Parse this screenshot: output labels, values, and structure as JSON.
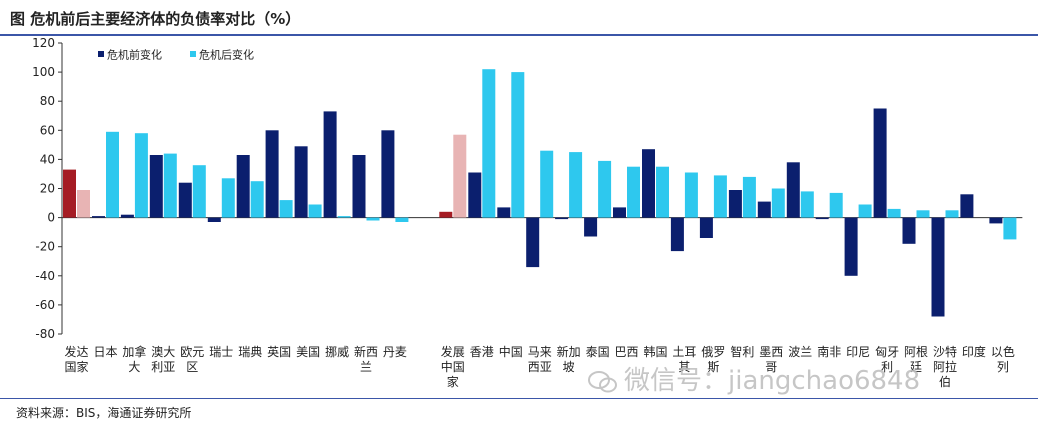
{
  "title": "图 危机前后主要经济体的负债率对比（%）",
  "source": "资料来源：BIS，海通证券研究所",
  "watermark": "微信号：jiangchao6848",
  "colors": {
    "pre": "#0b1f6e",
    "post": "#2ec8ee",
    "pre_aggregate": "#a51c24",
    "post_aggregate": "#e8b4b4",
    "rule": "#3b56a8"
  },
  "chart_data": {
    "type": "bar",
    "title": "危机前后主要经济体的负债率对比（%）",
    "ylabel": "%",
    "ylim": [
      -80,
      120
    ],
    "yticks": [
      -80,
      -60,
      -40,
      -20,
      0,
      20,
      40,
      60,
      80,
      100,
      120
    ],
    "grid": false,
    "legend_position": "top-left",
    "categories": [
      [
        "发达",
        "国家"
      ],
      [
        "日本"
      ],
      [
        "加拿",
        "大"
      ],
      [
        "澳大",
        "利亚"
      ],
      [
        "欧元",
        "区"
      ],
      [
        "瑞士"
      ],
      [
        "瑞典"
      ],
      [
        "英国"
      ],
      [
        "美国"
      ],
      [
        "挪威"
      ],
      [
        "新西",
        "兰"
      ],
      [
        "丹麦"
      ],
      [
        ""
      ],
      [
        "发展",
        "中国",
        "家"
      ],
      [
        "香港"
      ],
      [
        "中国"
      ],
      [
        "马来",
        "西亚"
      ],
      [
        "新加",
        "坡"
      ],
      [
        "泰国"
      ],
      [
        "巴西"
      ],
      [
        "韩国"
      ],
      [
        "土耳",
        "其"
      ],
      [
        "俄罗",
        "斯"
      ],
      [
        "智利"
      ],
      [
        "墨西",
        "哥"
      ],
      [
        "波兰"
      ],
      [
        "南非"
      ],
      [
        "印尼"
      ],
      [
        "匈牙",
        "利"
      ],
      [
        "阿根",
        "廷"
      ],
      [
        "沙特",
        "阿拉",
        "伯"
      ],
      [
        "印度"
      ],
      [
        "以色",
        "列"
      ]
    ],
    "series": [
      {
        "name": "危机前变化",
        "values": [
          33,
          1,
          2,
          43,
          24,
          -3,
          43,
          60,
          49,
          73,
          43,
          60,
          null,
          4,
          31,
          7,
          -34,
          -1,
          -13,
          7,
          47,
          -23,
          -14,
          19,
          11,
          38,
          -1,
          -40,
          75,
          -18,
          -68,
          16,
          -4
        ]
      },
      {
        "name": "危机后变化",
        "values": [
          19,
          59,
          58,
          44,
          36,
          27,
          25,
          12,
          9,
          1,
          -2,
          -3,
          null,
          57,
          102,
          100,
          46,
          45,
          39,
          35,
          35,
          31,
          29,
          28,
          20,
          18,
          17,
          9,
          6,
          5,
          5,
          0,
          -15
        ]
      }
    ],
    "aggregate_indices": [
      0,
      13
    ]
  }
}
